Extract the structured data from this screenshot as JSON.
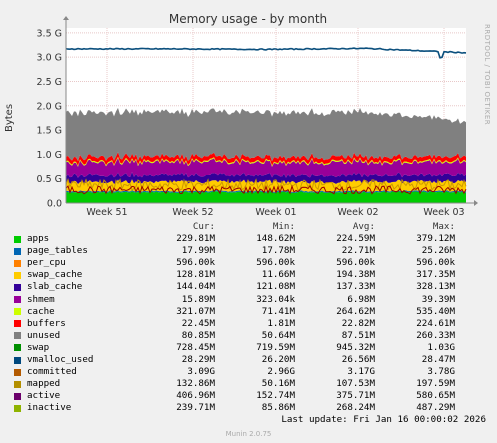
{
  "chart_data": {
    "type": "area",
    "title": "Memory usage - by month",
    "ylabel": "Bytes",
    "vertical_label": "RRDTOOL / TOBI OETIKER",
    "ylim": [
      0,
      3.6
    ],
    "y_unit": "G",
    "yticks": [
      "0.0",
      "0.5 G",
      "1.0 G",
      "1.5 G",
      "2.0 G",
      "2.5 G",
      "3.0 G",
      "3.5 G"
    ],
    "xticks": [
      "Week 51",
      "Week 52",
      "Week 01",
      "Week 02",
      "Week 03"
    ],
    "grid": true,
    "stack_order": [
      "apps",
      "page_tables",
      "per_cpu",
      "swap_cache",
      "slab_cache",
      "cache",
      "buffers",
      "unused",
      "swap"
    ],
    "series": [
      {
        "name": "apps",
        "color": "#00cc00",
        "values_gb": [
          0.225,
          0.225,
          0.225,
          0.225,
          0.225
        ]
      },
      {
        "name": "page_tables",
        "color": "#0066b3",
        "values_gb": [
          0.023,
          0.023,
          0.023,
          0.023,
          0.023
        ]
      },
      {
        "name": "per_cpu",
        "color": "#ff8000",
        "values_gb": [
          0.0006,
          0.0006,
          0.0006,
          0.0006,
          0.0006
        ]
      },
      {
        "name": "swap_cache",
        "color": "#ffcc00",
        "values_gb": [
          0.19,
          0.19,
          0.19,
          0.19,
          0.19
        ]
      },
      {
        "name": "slab_cache",
        "color": "#330099",
        "values_gb": [
          0.137,
          0.137,
          0.137,
          0.137,
          0.137
        ]
      },
      {
        "name": "cache",
        "color": "#990099",
        "values_gb": [
          0.265,
          0.265,
          0.265,
          0.265,
          0.265
        ]
      },
      {
        "name": "buffers",
        "color": "#ccff00",
        "values_gb": [
          0.023,
          0.023,
          0.023,
          0.023,
          0.023
        ]
      },
      {
        "name": "unused",
        "color": "#ff0000",
        "values_gb": [
          0.09,
          0.09,
          0.09,
          0.09,
          0.09
        ]
      },
      {
        "name": "swap",
        "color": "#808080",
        "values_gb": [
          0.92,
          0.92,
          0.92,
          0.92,
          0.75
        ]
      }
    ],
    "lines": [
      {
        "name": "committed",
        "color": "#0b4f7d",
        "values_gb": [
          3.17,
          3.17,
          3.16,
          3.18,
          3.09
        ]
      },
      {
        "name": "active",
        "color": "#cc9900",
        "values_gb": [
          0.37,
          0.37,
          0.37,
          0.37,
          0.37
        ]
      },
      {
        "name": "inactive",
        "color": "#990000",
        "values_gb": [
          0.27,
          0.27,
          0.27,
          0.27,
          0.27
        ]
      }
    ]
  },
  "legend": {
    "headers": {
      "cur": "Cur:",
      "min": "Min:",
      "avg": "Avg:",
      "max": "Max:"
    },
    "rows": [
      {
        "name": "apps",
        "color": "#00cc00",
        "cur": "229.81M",
        "min": "148.62M",
        "avg": "224.59M",
        "max": "379.12M"
      },
      {
        "name": "page_tables",
        "color": "#0066b3",
        "cur": "17.99M",
        "min": "17.78M",
        "avg": "22.71M",
        "max": "25.26M"
      },
      {
        "name": "per_cpu",
        "color": "#ff8000",
        "cur": "596.00k",
        "min": "596.00k",
        "avg": "596.00k",
        "max": "596.00k"
      },
      {
        "name": "swap_cache",
        "color": "#ffcc00",
        "cur": "128.81M",
        "min": "11.66M",
        "avg": "194.38M",
        "max": "317.35M"
      },
      {
        "name": "slab_cache",
        "color": "#330099",
        "cur": "144.04M",
        "min": "121.08M",
        "avg": "137.33M",
        "max": "328.13M"
      },
      {
        "name": "shmem",
        "color": "#990099",
        "cur": "15.89M",
        "min": "323.04k",
        "avg": "6.98M",
        "max": "39.39M"
      },
      {
        "name": "cache",
        "color": "#ccff00",
        "cur": "321.07M",
        "min": "71.41M",
        "avg": "264.62M",
        "max": "535.40M"
      },
      {
        "name": "buffers",
        "color": "#ff0000",
        "cur": "22.45M",
        "min": "1.81M",
        "avg": "22.82M",
        "max": "224.61M"
      },
      {
        "name": "unused",
        "color": "#808080",
        "cur": "80.85M",
        "min": "50.64M",
        "avg": "87.51M",
        "max": "260.33M"
      },
      {
        "name": "swap",
        "color": "#008f00",
        "cur": "728.45M",
        "min": "719.59M",
        "avg": "945.32M",
        "max": "1.03G"
      },
      {
        "name": "vmalloc_used",
        "color": "#00487d",
        "cur": "28.29M",
        "min": "26.20M",
        "avg": "26.56M",
        "max": "28.47M"
      },
      {
        "name": "committed",
        "color": "#b35a00",
        "cur": "3.09G",
        "min": "2.96G",
        "avg": "3.17G",
        "max": "3.78G"
      },
      {
        "name": "mapped",
        "color": "#b38f00",
        "cur": "132.86M",
        "min": "50.16M",
        "avg": "107.53M",
        "max": "197.59M"
      },
      {
        "name": "active",
        "color": "#6b006b",
        "cur": "406.96M",
        "min": "152.74M",
        "avg": "375.71M",
        "max": "580.65M"
      },
      {
        "name": "inactive",
        "color": "#8fb300",
        "cur": "239.71M",
        "min": "85.86M",
        "avg": "268.24M",
        "max": "487.29M"
      }
    ]
  },
  "footer": {
    "last_update": "Last update: Fri Jan 16 00:00:02 2026",
    "munin": "Munin 2.0.75"
  }
}
